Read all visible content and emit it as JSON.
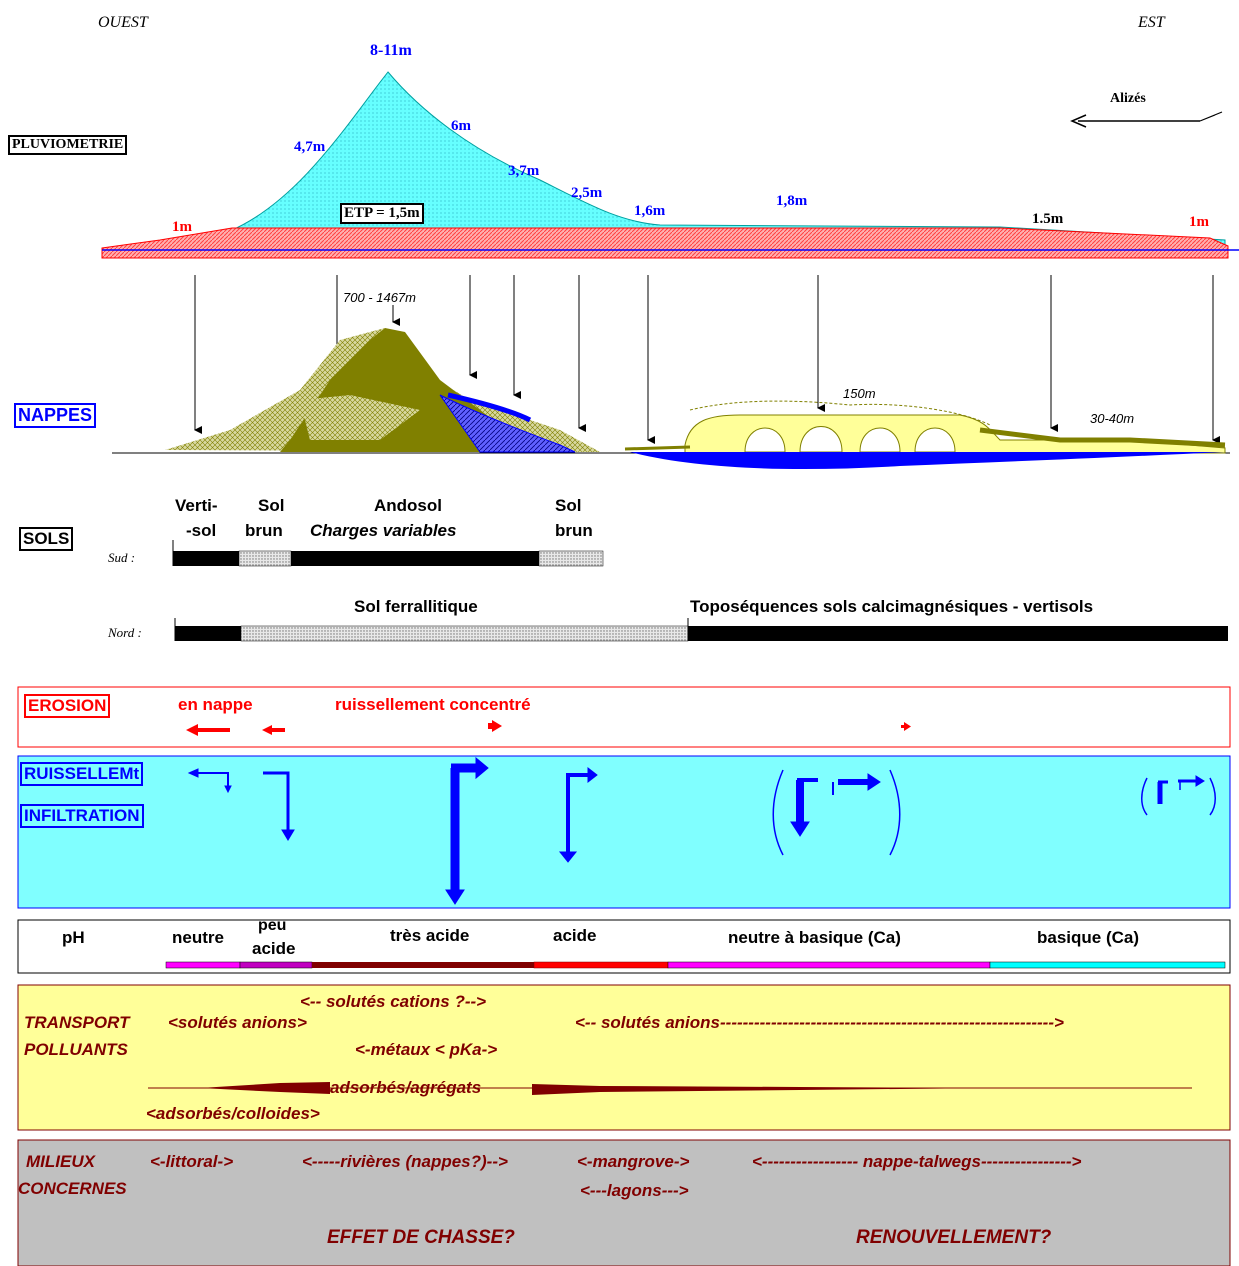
{
  "orientation": {
    "west": "OUEST",
    "east": "EST"
  },
  "rainfall": {
    "label": "PLUVIOMETRIE",
    "peak": "8-11m",
    "values": [
      "1m",
      "4,7m",
      "6m",
      "3,7m",
      "2,5m",
      "1,6m",
      "1,8m",
      "1.5m",
      "1m"
    ],
    "etp": "ETP = 1,5m",
    "wind": "Alizés"
  },
  "aquifers": {
    "label": "NAPPES",
    "summit": "700 - 1467m",
    "mid": "150m",
    "low": "30-40m"
  },
  "soils": {
    "label": "SOLS",
    "south": "Sud :",
    "north": "Nord :",
    "vertisol_1": "Verti-",
    "vertisol_2": "-sol",
    "brown_1": "Sol",
    "brown_2": "brun",
    "andosol_1": "Andosol",
    "andosol_2": "Charges variables",
    "brown2_1": "Sol",
    "brown2_2": "brun",
    "ferrallitic": "Sol ferrallitique",
    "toposequence": "Toposéquences sols calcimagnésiques - vertisols"
  },
  "erosion": {
    "label": "EROSION",
    "sheet": "en nappe",
    "concentrated": "ruissellement concentré"
  },
  "runoff": {
    "label_runoff": "RUISSELLEMt",
    "label_infiltration": "INFILTRATION"
  },
  "ph": {
    "label": "pH",
    "neutral": "neutre",
    "slightly_1": "peu",
    "slightly_2": "acide",
    "very_acid": "très acide",
    "acid": "acide",
    "neutral_basic": "neutre à  basique (Ca)",
    "basic": "basique (Ca)"
  },
  "transport": {
    "label_1": "TRANSPORT",
    "label_2": "POLLUANTS",
    "cations": "<-- solutés cations ?-->",
    "anions_left": "<solutés anions>",
    "anions_right": "<-- solutés anions----------------------------------------------------------->",
    "metals": "<-métaux < pKa->",
    "aggregates": "adsorbés/agrégats",
    "colloids": "<adsorbés/colloides>"
  },
  "environments": {
    "label_1": "MILIEUX",
    "label_2": "CONCERNES",
    "littoral": "<-littoral->",
    "rivers": "<-----rivières (nappes?)-->",
    "mangrove": "<-mangrove->",
    "lagoons": "<---lagons--->",
    "talweg": "<----------------- nappe-talwegs---------------->",
    "flush": "EFFET DE CHASSE?",
    "renewal": "RENOUVELLEMENT?"
  },
  "colors": {
    "rain_fill": "#66ffff",
    "etp_fill": "#ff9999",
    "water_blue": "#0000ff",
    "olive": "#808000",
    "light_yellow": "#ffff99",
    "runoff_bg": "#80ffff",
    "transport_bg": "#ffff99",
    "env_bg": "#c0c0c0",
    "dark_red": "#800000"
  }
}
